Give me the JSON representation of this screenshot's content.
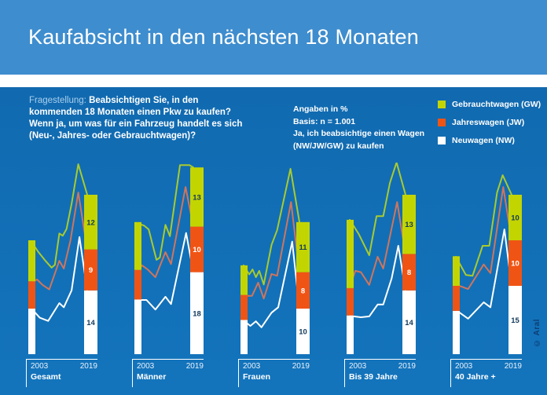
{
  "header": {
    "title": "Kaufabsicht in den nächsten 18 Monaten"
  },
  "question": {
    "prefix": "Fragestellung:",
    "lines": [
      "Beabsichtigen Sie, in den",
      "kommenden 18 Monaten einen Pkw zu kaufen?",
      "Wenn ja, um was für ein Fahrzeug handelt es sich",
      "(Neu-, Jahres- oder Gebrauchtwagen)?"
    ]
  },
  "info": {
    "lines": [
      "Angaben in %",
      "Basis: n = 1.001",
      "Ja, ich beabsichtige einen Wagen",
      "(NW/JW/GW) zu kaufen"
    ]
  },
  "legend": {
    "items": [
      {
        "key": "gw",
        "label": "Gebrauchtwagen (GW)",
        "color": "#C3D500"
      },
      {
        "key": "jw",
        "label": "Jahreswagen (JW)",
        "color": "#F05414"
      },
      {
        "key": "nw",
        "label": "Neuwagen (NW)",
        "color": "#FFFFFF"
      }
    ]
  },
  "copyright": "© Aral",
  "colors": {
    "header_bg": "#3E8DCE",
    "body_top": "#116AB0",
    "body_bottom": "#1374BC",
    "gw_bar": "#C3D500",
    "jw_bar": "#F05414",
    "nw_bar": "#FFFFFF",
    "gw_line": "#A9CB2D",
    "jw_line": "#D0755B",
    "nw_line": "#FFFFFF",
    "navy_text": "#123A5E",
    "light_blue_text": "#A9CFEC"
  },
  "chart_data": {
    "type": "line",
    "unit": "%",
    "x_axis_labels": [
      "2003",
      "2019"
    ],
    "x_range_years": [
      2003,
      2019
    ],
    "note": "lines are cumulative stacked shares NW, NW+JW, NW+JW+GW; bars show composition in 2003 (unlabeled) and 2019 (labeled)",
    "series_names": {
      "gw": "Gebrauchtwagen (GW)",
      "jw": "Jahreswagen (JW)",
      "nw": "Neuwagen (NW)"
    },
    "charts": [
      {
        "title": "Gesamt",
        "bar_2003": {
          "nw": 10,
          "jw": 6,
          "gw": 9
        },
        "bar_2019": {
          "nw": 14,
          "jw": 9,
          "gw": 12
        },
        "lines_cumulative": {
          "gw": [
            [
              0,
              24.7
            ],
            [
              0.12,
              22.5
            ],
            [
              0.25,
              20.5
            ],
            [
              0.36,
              19
            ],
            [
              0.42,
              19.6
            ],
            [
              0.5,
              26.5
            ],
            [
              0.56,
              26
            ],
            [
              0.63,
              27.5
            ],
            [
              0.72,
              33
            ],
            [
              0.84,
              41.7
            ],
            [
              1,
              35
            ]
          ],
          "jw": [
            [
              0,
              15.7
            ],
            [
              0.1,
              16.4
            ],
            [
              0.2,
              15.2
            ],
            [
              0.32,
              14.2
            ],
            [
              0.5,
              20.5
            ],
            [
              0.58,
              18.8
            ],
            [
              0.7,
              25
            ],
            [
              0.84,
              35.5
            ],
            [
              1,
              23
            ]
          ],
          "nw": [
            [
              0,
              10
            ],
            [
              0.15,
              8
            ],
            [
              0.3,
              7.3
            ],
            [
              0.5,
              11.2
            ],
            [
              0.58,
              10.3
            ],
            [
              0.72,
              14
            ],
            [
              0.86,
              25.7
            ],
            [
              1,
              14
            ]
          ]
        }
      },
      {
        "title": "Männer",
        "bar_2003": {
          "nw": 12,
          "jw": 6.5,
          "gw": 10.5
        },
        "bar_2019": {
          "nw": 18,
          "jw": 10,
          "gw": 13
        },
        "lines_cumulative": {
          "gw": [
            [
              0,
              28.8
            ],
            [
              0.12,
              28.2
            ],
            [
              0.2,
              27.4
            ],
            [
              0.34,
              20.7
            ],
            [
              0.4,
              21.2
            ],
            [
              0.5,
              28.4
            ],
            [
              0.58,
              25.9
            ],
            [
              0.76,
              41.5
            ],
            [
              0.93,
              41.5
            ],
            [
              1,
              41
            ]
          ],
          "jw": [
            [
              0,
              18.3
            ],
            [
              0.08,
              19.5
            ],
            [
              0.18,
              18.6
            ],
            [
              0.32,
              16.9
            ],
            [
              0.5,
              22.4
            ],
            [
              0.6,
              19.8
            ],
            [
              0.86,
              36.7
            ],
            [
              1,
              28
            ]
          ],
          "nw": [
            [
              0,
              11.9
            ],
            [
              0.16,
              11.9
            ],
            [
              0.32,
              9.8
            ],
            [
              0.5,
              12.6
            ],
            [
              0.6,
              11
            ],
            [
              0.87,
              26.6
            ],
            [
              1,
              18
            ]
          ]
        }
      },
      {
        "title": "Frauen",
        "bar_2003": {
          "nw": 7.5,
          "jw": 5.5,
          "gw": 6.5
        },
        "bar_2019": {
          "nw": 10,
          "jw": 8,
          "gw": 11
        },
        "lines_cumulative": {
          "gw": [
            [
              0,
              19.5
            ],
            [
              0.1,
              17.5
            ],
            [
              0.16,
              18.6
            ],
            [
              0.22,
              16.9
            ],
            [
              0.28,
              18.3
            ],
            [
              0.36,
              15.3
            ],
            [
              0.5,
              24
            ],
            [
              0.6,
              27.2
            ],
            [
              0.84,
              40.7
            ],
            [
              1,
              29
            ]
          ],
          "jw": [
            [
              0,
              12.8
            ],
            [
              0.15,
              12.8
            ],
            [
              0.26,
              15.7
            ],
            [
              0.36,
              12.2
            ],
            [
              0.5,
              17.6
            ],
            [
              0.6,
              17.2
            ],
            [
              0.85,
              33.4
            ],
            [
              1,
              18
            ]
          ],
          "nw": [
            [
              0,
              7.4
            ],
            [
              0.12,
              6.2
            ],
            [
              0.22,
              7.2
            ],
            [
              0.32,
              5.9
            ],
            [
              0.5,
              9.1
            ],
            [
              0.62,
              10.3
            ],
            [
              0.87,
              24.7
            ],
            [
              1,
              10
            ]
          ]
        }
      },
      {
        "title": "Bis 39 Jahre",
        "bar_2003": {
          "nw": 8.5,
          "jw": 6,
          "gw": 15
        },
        "bar_2019": {
          "nw": 14,
          "jw": 8,
          "gw": 13
        },
        "lines_cumulative": {
          "gw": [
            [
              0,
              29.5
            ],
            [
              0.16,
              26.4
            ],
            [
              0.35,
              21.7
            ],
            [
              0.48,
              30.3
            ],
            [
              0.6,
              30.3
            ],
            [
              0.72,
              37.6
            ],
            [
              0.84,
              42.1
            ],
            [
              1,
              35
            ]
          ],
          "jw": [
            [
              0,
              14.7
            ],
            [
              0.1,
              18.3
            ],
            [
              0.2,
              18
            ],
            [
              0.35,
              15.2
            ],
            [
              0.5,
              21.4
            ],
            [
              0.6,
              18.8
            ],
            [
              0.85,
              33.4
            ],
            [
              1,
              22
            ]
          ],
          "nw": [
            [
              0,
              8.4
            ],
            [
              0.2,
              8.1
            ],
            [
              0.35,
              8.3
            ],
            [
              0.5,
              10.9
            ],
            [
              0.6,
              10.9
            ],
            [
              0.75,
              16.6
            ],
            [
              0.87,
              23.8
            ],
            [
              1,
              14
            ]
          ]
        }
      },
      {
        "title": "40 Jahre +",
        "bar_2003": {
          "nw": 9.5,
          "jw": 5.5,
          "gw": 6.5
        },
        "bar_2019": {
          "nw": 15,
          "jw": 10,
          "gw": 10
        },
        "lines_cumulative": {
          "gw": [
            [
              0,
              21.4
            ],
            [
              0.18,
              17.4
            ],
            [
              0.3,
              17.2
            ],
            [
              0.48,
              23.8
            ],
            [
              0.6,
              23.8
            ],
            [
              0.74,
              35.5
            ],
            [
              0.84,
              39.3
            ],
            [
              1,
              35
            ]
          ],
          "jw": [
            [
              0,
              15.3
            ],
            [
              0.22,
              14.3
            ],
            [
              0.5,
              19.7
            ],
            [
              0.62,
              17.8
            ],
            [
              0.85,
              36.7
            ],
            [
              1,
              25
            ]
          ],
          "nw": [
            [
              0,
              9.7
            ],
            [
              0.22,
              7.8
            ],
            [
              0.5,
              11.4
            ],
            [
              0.62,
              10.3
            ],
            [
              0.87,
              27.4
            ],
            [
              1,
              15
            ]
          ]
        }
      }
    ]
  }
}
